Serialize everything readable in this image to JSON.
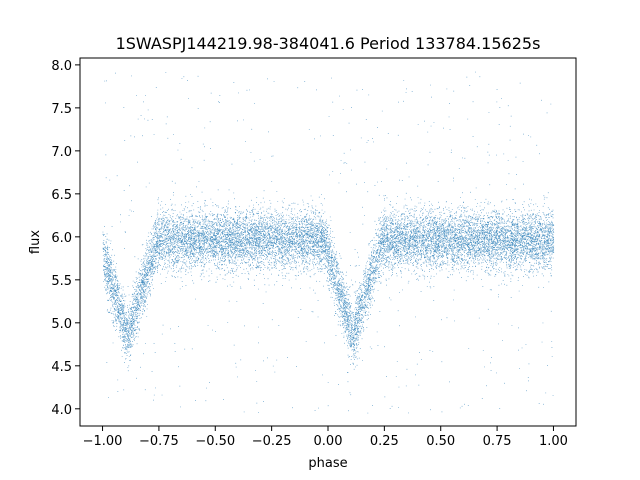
{
  "chart_data": {
    "type": "scatter",
    "title": "1SWASPJ144219.98-384041.6 Period 133784.15625s",
    "xlabel": "phase",
    "ylabel": "flux",
    "xlim": [
      -1.1,
      1.1
    ],
    "ylim": [
      3.8,
      8.08
    ],
    "x_ticks": [
      -1.0,
      -0.75,
      -0.5,
      -0.25,
      0.0,
      0.25,
      0.5,
      0.75,
      1.0
    ],
    "x_tick_labels": [
      "−1.00",
      "−0.75",
      "−0.50",
      "−0.25",
      "0.00",
      "0.25",
      "0.50",
      "0.75",
      "1.00"
    ],
    "y_ticks": [
      4.0,
      4.5,
      5.0,
      5.5,
      6.0,
      6.5,
      7.0,
      7.5,
      8.0
    ],
    "y_tick_labels": [
      "4.0",
      "4.5",
      "5.0",
      "5.5",
      "6.0",
      "6.5",
      "7.0",
      "7.5",
      "8.0"
    ],
    "grid": false,
    "legend": "none",
    "marker_color": "#1f77b4",
    "profile": {
      "description": "folded light curve, baseline flux and eclipse minima",
      "baseline_flux": 5.97,
      "baseline_scatter": 0.17,
      "eclipses": [
        {
          "phase_center": -0.89,
          "min_flux": 4.85
        },
        {
          "phase_center": 0.11,
          "min_flux": 4.85
        }
      ],
      "eclipse_half_width": 0.13,
      "outlier_range": [
        3.95,
        7.95
      ]
    }
  }
}
